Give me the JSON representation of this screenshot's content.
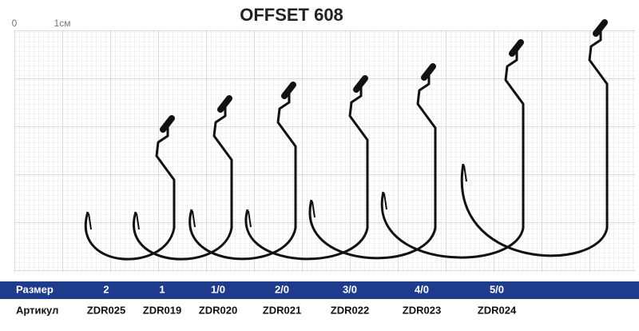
{
  "title": "OFFSET 608",
  "scale": {
    "start": "0",
    "unit": "1см"
  },
  "table": {
    "size_label": "Размер",
    "sizes": [
      "2",
      "1",
      "1/0",
      "2/0",
      "3/0",
      "4/0",
      "5/0"
    ],
    "article_label": "Артикул",
    "articles": [
      "ZDR025",
      "ZDR019",
      "ZDR020",
      "ZDR021",
      "ZDR022",
      "ZDR023",
      "ZDR024"
    ]
  }
}
